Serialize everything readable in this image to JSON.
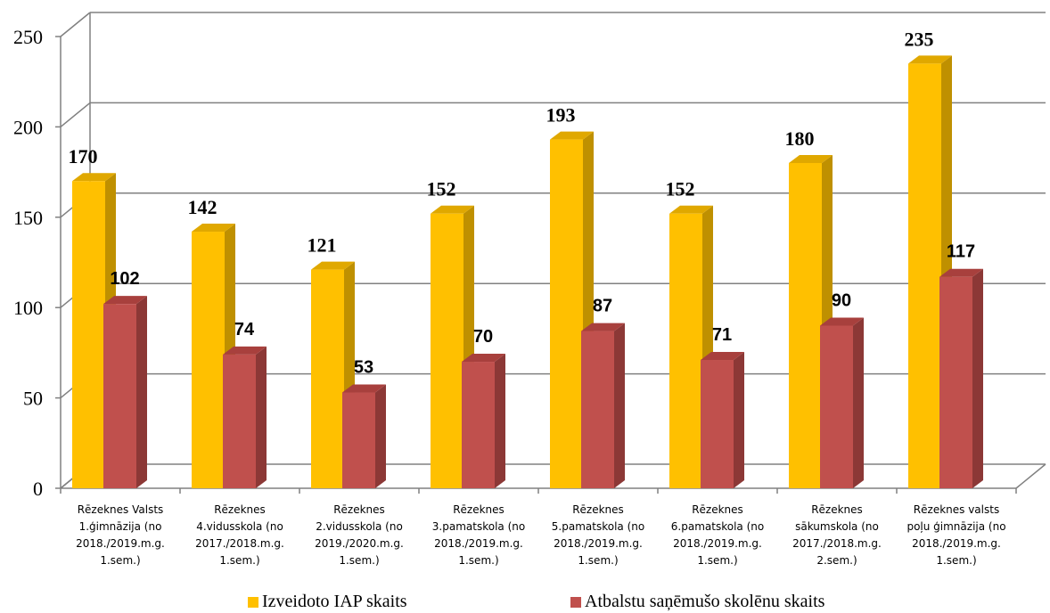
{
  "chart_data": {
    "type": "bar",
    "categories": [
      [
        "Rēzeknes Valsts",
        "1.ģimnāzija  (no",
        "2018./2019.m.g.",
        "1.sem.)"
      ],
      [
        "Rēzeknes",
        "4.vidusskola (no",
        "2017./2018.m.g.",
        "1.sem.)"
      ],
      [
        "Rēzeknes",
        "2.vidusskola (no",
        "2019./2020.m.g.",
        "1.sem.)"
      ],
      [
        "Rēzeknes",
        "3.pamatskola (no",
        "2018./2019.m.g.",
        "1.sem.)"
      ],
      [
        "Rēzeknes",
        "5.pamatskola (no",
        "2018./2019.m.g.",
        "1.sem.)"
      ],
      [
        "Rēzeknes",
        "6.pamatskola (no",
        "2018./2019.m.g.",
        "1.sem.)"
      ],
      [
        "Rēzeknes",
        "sākumskola  (no",
        "2017./2018.m.g.",
        "2.sem.)"
      ],
      [
        "Rēzeknes valsts",
        "poļu ģimnāzija (no",
        "2018./2019.m.g.",
        "1.sem.)"
      ]
    ],
    "series": [
      {
        "name": "Izveidoto IAP skaits",
        "values": [
          170,
          142,
          121,
          152,
          193,
          152,
          180,
          235
        ],
        "color": "#FFC000",
        "side_color": "#BF9000",
        "top_color": "#E0A800"
      },
      {
        "name": "Atbalstu saņēmušo skolēnu skaits",
        "values": [
          102,
          74,
          53,
          70,
          87,
          71,
          90,
          117
        ],
        "color": "#C0504D",
        "side_color": "#8C3836",
        "top_color": "#A8403D"
      }
    ],
    "ylim": [
      0,
      250
    ],
    "yticks": [
      0,
      50,
      100,
      150,
      200,
      250
    ],
    "grid": true,
    "legend_position": "bottom"
  }
}
